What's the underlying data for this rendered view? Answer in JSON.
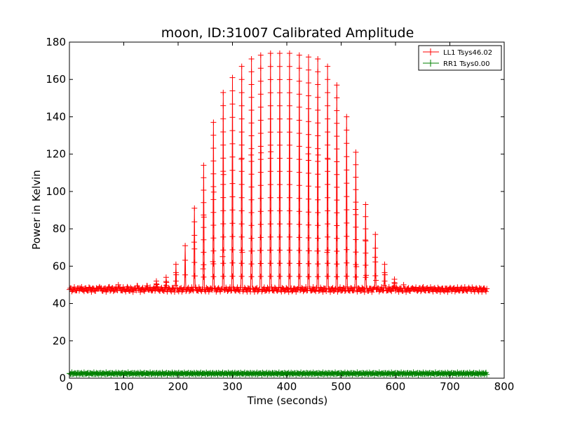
{
  "chart_data": {
    "type": "line",
    "title": "moon, ID:31007 Calibrated Amplitude",
    "xlabel": "Time (seconds)",
    "ylabel": "Power in Kelvin",
    "xlim": [
      0,
      800
    ],
    "ylim": [
      0,
      180
    ],
    "x_ticks": [
      "0",
      "100",
      "200",
      "300",
      "400",
      "500",
      "600",
      "700",
      "800"
    ],
    "y_ticks": [
      "0",
      "20",
      "40",
      "60",
      "80",
      "100",
      "120",
      "140",
      "160",
      "180"
    ],
    "grid": false,
    "legend_position": "top-right",
    "marker": "+",
    "baseline_level": 47.5,
    "spike_times": [
      20,
      37,
      55,
      73,
      90,
      107,
      125,
      143,
      160,
      178,
      196,
      213,
      230,
      247,
      265,
      283,
      300,
      317,
      335,
      352,
      370,
      387,
      405,
      423,
      440,
      457,
      475,
      492,
      510,
      527,
      545,
      563,
      580,
      598,
      615,
      632,
      650,
      667,
      685,
      702,
      720,
      737,
      755
    ],
    "spike_peaks": [
      49,
      49,
      50,
      50,
      50,
      50,
      51,
      51,
      52,
      54,
      61,
      71,
      91,
      114,
      137,
      153,
      161,
      167,
      171,
      173,
      174,
      174,
      174,
      173,
      172,
      171,
      167,
      157,
      140,
      121,
      93,
      77,
      61,
      53,
      50,
      49,
      49,
      48,
      48,
      48,
      48,
      48,
      48
    ],
    "series": [
      {
        "name": "LL1 Tsys46.02",
        "color": "#ff0000",
        "x_start": 0,
        "x_end": 768,
        "sample_interval": 1.5,
        "base_level": 47.5
      },
      {
        "name": "RR1 Tsys0.00",
        "color": "#008000",
        "x_start": 0,
        "x_end": 768,
        "sample_interval": 1.5,
        "base_level": 2.5
      }
    ]
  }
}
